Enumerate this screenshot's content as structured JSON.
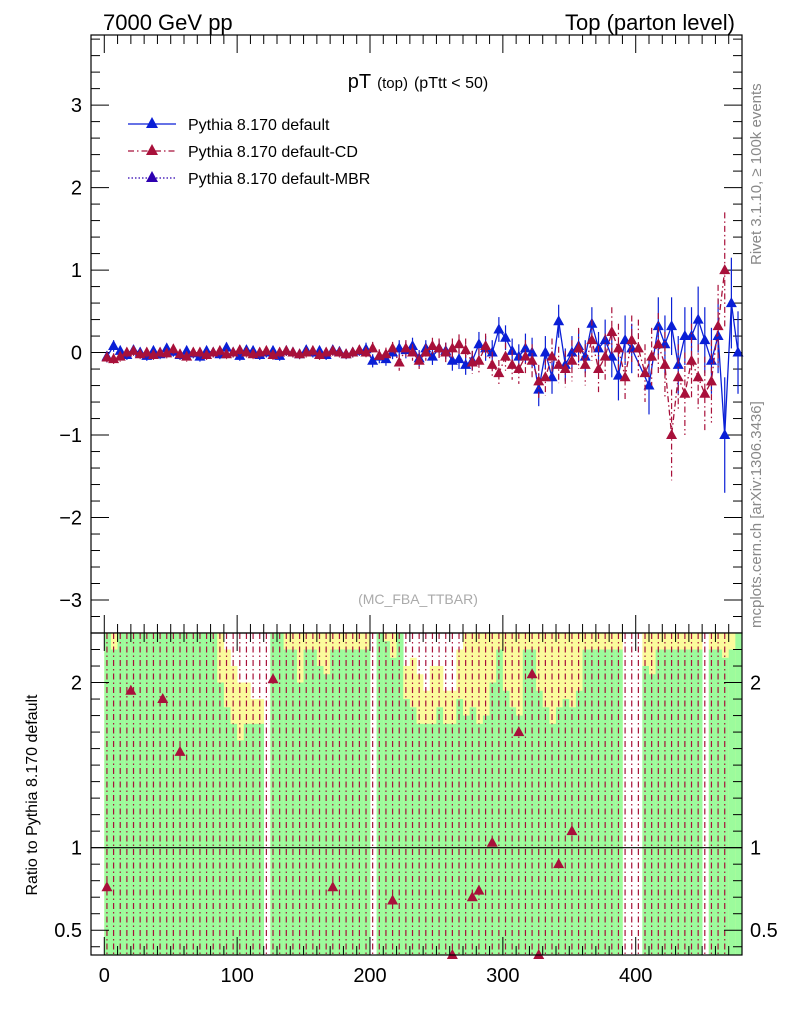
{
  "header": {
    "left": "7000 GeV pp",
    "right": "Top (parton level)"
  },
  "side_labels": {
    "rivet": "Rivet 3.1.10, ≥ 100k events",
    "mcplots": "mcplots.cern.ch [arXiv:1306.3436]"
  },
  "colors": {
    "default": "#0a1fd6",
    "cd": "#a8103a",
    "mbr": "#2d00b0",
    "band_green": "#9cfb9c",
    "band_yellow": "#fbfb9c"
  },
  "chart_data": [
    {
      "type": "line",
      "title_main": "pT",
      "title_sub": "(top)",
      "title_cut": "(pTtt < 50)",
      "watermark": "(MC_FBA_TTBAR)",
      "xlabel": "",
      "ylabel": "",
      "xlim": [
        -10,
        480
      ],
      "ylim": [
        -3.4,
        3.85
      ],
      "yticks": [
        -3,
        -2,
        -1,
        0,
        1,
        2,
        3
      ],
      "ytick_labels": [
        "−3",
        "−2",
        "−1",
        "0",
        "1",
        "2",
        "3"
      ],
      "legend": {
        "placement": "top-left",
        "entries": [
          "Pythia 8.170 default",
          "Pythia 8.170 default-CD",
          "Pythia 8.170 default-MBR"
        ]
      },
      "series": [
        {
          "name": "Pythia 8.170 default",
          "style": "solid",
          "x": [
            2,
            7,
            12,
            17,
            22,
            27,
            32,
            37,
            42,
            47,
            52,
            57,
            62,
            67,
            72,
            77,
            82,
            87,
            92,
            97,
            102,
            107,
            112,
            117,
            122,
            127,
            132,
            137,
            142,
            147,
            152,
            157,
            162,
            167,
            172,
            177,
            182,
            187,
            192,
            197,
            202,
            207,
            212,
            217,
            222,
            227,
            232,
            237,
            242,
            247,
            252,
            257,
            262,
            267,
            272,
            277,
            282,
            287,
            292,
            297,
            302,
            307,
            312,
            317,
            322,
            327,
            332,
            337,
            342,
            347,
            352,
            357,
            362,
            367,
            372,
            377,
            382,
            387,
            392,
            397,
            410,
            417,
            422,
            427,
            432,
            437,
            442,
            447,
            452,
            457,
            462,
            467,
            472,
            477
          ],
          "y": [
            -0.05,
            0.08,
            0.02,
            -0.03,
            0.03,
            0.0,
            -0.04,
            0.02,
            -0.02,
            0.05,
            0.01,
            -0.03,
            0.02,
            -0.01,
            -0.05,
            0.02,
            0.0,
            -0.02,
            0.06,
            0.0,
            -0.04,
            0.03,
            0.02,
            -0.03,
            0.0,
            0.02,
            -0.04,
            0.02,
            0.0,
            -0.02,
            0.03,
            0.0,
            0.02,
            -0.03,
            0.03,
            0.01,
            -0.02,
            0.0,
            0.02,
            0.04,
            -0.1,
            -0.05,
            -0.08,
            0.0,
            0.05,
            0.03,
            0.08,
            -0.07,
            0.05,
            -0.05,
            0.05,
            0.02,
            -0.1,
            -0.08,
            -0.15,
            -0.1,
            0.1,
            0.05,
            0.0,
            0.28,
            0.18,
            0.02,
            -0.05,
            0.05,
            0.0,
            -0.45,
            0.0,
            -0.3,
            0.38,
            -0.15,
            0.0,
            0.08,
            -0.05,
            0.35,
            0.05,
            0.15,
            -0.05,
            -0.28,
            0.15,
            0.05,
            -0.4,
            0.32,
            0.1,
            0.32,
            -0.15,
            0.2,
            0.2,
            0.4,
            0.15,
            -0.1,
            0.2,
            -1.0,
            0.6,
            0.0
          ],
          "yerr": [
            0.07,
            0.07,
            0.06,
            0.06,
            0.06,
            0.06,
            0.06,
            0.06,
            0.06,
            0.06,
            0.06,
            0.06,
            0.06,
            0.06,
            0.06,
            0.06,
            0.06,
            0.06,
            0.06,
            0.06,
            0.06,
            0.06,
            0.06,
            0.06,
            0.06,
            0.06,
            0.06,
            0.06,
            0.06,
            0.06,
            0.06,
            0.06,
            0.06,
            0.06,
            0.06,
            0.06,
            0.06,
            0.06,
            0.06,
            0.08,
            0.08,
            0.08,
            0.08,
            0.08,
            0.1,
            0.1,
            0.1,
            0.1,
            0.1,
            0.1,
            0.1,
            0.1,
            0.12,
            0.12,
            0.12,
            0.12,
            0.15,
            0.15,
            0.15,
            0.15,
            0.15,
            0.15,
            0.15,
            0.18,
            0.18,
            0.2,
            0.2,
            0.2,
            0.2,
            0.2,
            0.2,
            0.2,
            0.2,
            0.2,
            0.2,
            0.25,
            0.25,
            0.3,
            0.3,
            0.3,
            0.35,
            0.35,
            0.35,
            0.35,
            0.35,
            0.35,
            0.35,
            0.4,
            0.4,
            0.4,
            0.45,
            0.7,
            0.55,
            0.5
          ]
        },
        {
          "name": "Pythia 8.170 default-CD",
          "style": "dashdot",
          "x": [
            2,
            7,
            12,
            17,
            22,
            27,
            32,
            37,
            42,
            47,
            52,
            57,
            62,
            67,
            72,
            77,
            82,
            87,
            92,
            97,
            102,
            107,
            112,
            117,
            122,
            127,
            132,
            137,
            142,
            147,
            152,
            157,
            162,
            167,
            172,
            177,
            182,
            187,
            192,
            197,
            202,
            207,
            212,
            217,
            222,
            227,
            232,
            237,
            242,
            247,
            252,
            257,
            262,
            267,
            272,
            277,
            282,
            287,
            292,
            297,
            302,
            307,
            312,
            317,
            322,
            327,
            332,
            337,
            342,
            347,
            352,
            357,
            362,
            367,
            372,
            377,
            382,
            387,
            392,
            397,
            402,
            407,
            412,
            417,
            422,
            427,
            432,
            437,
            442,
            447,
            452,
            457,
            462,
            467
          ],
          "y": [
            -0.06,
            -0.08,
            -0.05,
            0.0,
            0.02,
            -0.02,
            0.0,
            -0.03,
            0.0,
            -0.01,
            0.04,
            -0.02,
            -0.05,
            0.0,
            0.0,
            -0.03,
            0.0,
            0.02,
            -0.02,
            0.0,
            0.03,
            0.0,
            -0.02,
            0.0,
            0.02,
            -0.03,
            0.0,
            0.02,
            0.0,
            -0.02,
            0.0,
            0.02,
            -0.03,
            0.0,
            0.02,
            0.0,
            -0.02,
            0.0,
            0.03,
            0.0,
            0.05,
            -0.04,
            -0.02,
            0.05,
            -0.12,
            0.05,
            0.0,
            -0.1,
            0.0,
            0.08,
            0.05,
            0.0,
            0.05,
            0.1,
            0.03,
            -0.12,
            -0.1,
            0.08,
            -0.15,
            -0.25,
            -0.05,
            -0.15,
            -0.2,
            -0.05,
            -0.1,
            -0.35,
            -0.3,
            -0.05,
            -0.15,
            -0.2,
            -0.1,
            0.05,
            -0.15,
            0.15,
            -0.2,
            -0.05,
            0.25,
            0.05,
            -0.3,
            0.15,
            0.05,
            -0.25,
            -0.05,
            0.1,
            -0.15,
            -1.0,
            -0.3,
            -0.5,
            -0.1,
            -0.3,
            -0.5,
            -0.35,
            0.32,
            1.0
          ],
          "yerr": [
            0.07,
            0.07,
            0.06,
            0.06,
            0.06,
            0.06,
            0.06,
            0.06,
            0.06,
            0.06,
            0.06,
            0.06,
            0.06,
            0.06,
            0.06,
            0.06,
            0.06,
            0.06,
            0.06,
            0.06,
            0.06,
            0.06,
            0.06,
            0.06,
            0.06,
            0.06,
            0.06,
            0.06,
            0.06,
            0.06,
            0.06,
            0.06,
            0.06,
            0.06,
            0.06,
            0.06,
            0.06,
            0.06,
            0.06,
            0.07,
            0.08,
            0.08,
            0.08,
            0.08,
            0.1,
            0.1,
            0.1,
            0.1,
            0.1,
            0.1,
            0.12,
            0.12,
            0.12,
            0.12,
            0.14,
            0.14,
            0.15,
            0.15,
            0.16,
            0.16,
            0.17,
            0.18,
            0.18,
            0.2,
            0.2,
            0.2,
            0.22,
            0.22,
            0.22,
            0.22,
            0.25,
            0.25,
            0.25,
            0.25,
            0.28,
            0.28,
            0.3,
            0.3,
            0.3,
            0.3,
            0.35,
            0.35,
            0.35,
            0.38,
            0.4,
            0.55,
            0.4,
            0.5,
            0.45,
            0.4,
            0.45,
            0.5,
            0.5,
            0.7
          ]
        },
        {
          "name": "Pythia 8.170 default-MBR",
          "style": "dotted",
          "x": [],
          "y": [],
          "yerr": []
        }
      ]
    },
    {
      "type": "line",
      "ylabel": "Ratio to Pythia 8.170 default",
      "xlim": [
        -10,
        480
      ],
      "ylim": [
        0.35,
        2.3
      ],
      "xticks": [
        0,
        100,
        200,
        300,
        400
      ],
      "xtick_labels": [
        "0",
        "100",
        "200",
        "300",
        "400"
      ],
      "yticks": [
        0.5,
        1,
        2
      ],
      "ytick_labels": [
        "0.5",
        "1",
        "2"
      ],
      "reference_line": 1,
      "band_edges": [
        0,
        5,
        10,
        15,
        20,
        25,
        30,
        35,
        40,
        45,
        50,
        55,
        60,
        65,
        70,
        75,
        80,
        85,
        90,
        95,
        100,
        105,
        110,
        115,
        120,
        125,
        130,
        135,
        140,
        145,
        150,
        155,
        160,
        165,
        170,
        175,
        180,
        185,
        190,
        195,
        200,
        205,
        210,
        215,
        220,
        225,
        230,
        235,
        240,
        245,
        250,
        255,
        260,
        265,
        270,
        275,
        280,
        285,
        290,
        295,
        300,
        305,
        310,
        315,
        320,
        325,
        330,
        335,
        340,
        345,
        350,
        355,
        360,
        365,
        370,
        375,
        380,
        385,
        390,
        395,
        400,
        405,
        410,
        415,
        420,
        425,
        430,
        435,
        440,
        445,
        450,
        455,
        460,
        465,
        470,
        475,
        480
      ],
      "band_green": [
        2.3,
        2.2,
        2.3,
        2.3,
        2.3,
        2.3,
        2.3,
        2.3,
        2.3,
        2.3,
        2.3,
        2.3,
        2.3,
        2.3,
        2.3,
        2.3,
        2.3,
        2.0,
        1.85,
        1.75,
        1.65,
        1.75,
        1.75,
        1.75,
        null,
        2.3,
        2.3,
        2.2,
        2.2,
        2.0,
        2.2,
        2.2,
        2.1,
        2.05,
        2.2,
        2.2,
        2.2,
        2.2,
        2.2,
        2.2,
        null,
        2.3,
        2.25,
        2.15,
        2.3,
        1.9,
        1.85,
        1.75,
        1.75,
        1.75,
        1.85,
        1.75,
        1.75,
        1.9,
        1.8,
        1.85,
        1.75,
        1.8,
        2.0,
        2.2,
        1.95,
        1.85,
        1.8,
        2.2,
        2.2,
        1.95,
        1.85,
        1.75,
        1.85,
        1.9,
        1.85,
        1.95,
        2.2,
        2.2,
        2.2,
        2.2,
        2.2,
        2.2,
        null,
        null,
        null,
        2.1,
        2.05,
        2.2,
        2.2,
        2.2,
        2.2,
        2.2,
        2.2,
        2.2,
        null,
        2.2,
        2.2,
        2.15,
        2.2,
        2.3
      ],
      "band_yellow": [
        2.3,
        2.3,
        2.3,
        2.3,
        2.3,
        2.3,
        2.3,
        2.3,
        2.3,
        2.3,
        2.3,
        2.3,
        2.3,
        2.3,
        2.3,
        2.3,
        2.3,
        2.3,
        2.2,
        2.1,
        2.0,
        2.0,
        1.9,
        1.9,
        null,
        2.3,
        2.3,
        2.3,
        2.3,
        2.3,
        2.3,
        2.3,
        2.3,
        2.3,
        2.3,
        2.3,
        2.3,
        2.3,
        2.3,
        2.3,
        null,
        2.3,
        2.3,
        2.3,
        2.3,
        2.1,
        2.15,
        2.05,
        1.95,
        2.1,
        2.1,
        1.95,
        1.95,
        2.2,
        2.3,
        2.3,
        2.3,
        2.3,
        2.3,
        2.3,
        2.3,
        2.3,
        2.3,
        2.3,
        2.3,
        2.3,
        2.3,
        2.3,
        2.3,
        2.3,
        2.3,
        2.3,
        2.3,
        2.3,
        2.3,
        2.3,
        2.3,
        2.3,
        null,
        null,
        null,
        2.3,
        2.3,
        2.3,
        2.3,
        2.3,
        2.3,
        2.3,
        2.3,
        2.3,
        null,
        2.3,
        2.3,
        2.3,
        2.3,
        2.3
      ],
      "band_low_green": [
        0.35,
        0.35,
        0.35,
        0.35,
        0.35,
        0.35,
        0.35,
        0.35,
        0.35,
        0.35,
        0.35,
        0.35,
        0.35,
        0.35,
        0.35,
        0.35,
        0.35,
        0.35,
        0.35,
        0.35,
        0.35,
        0.35,
        0.35,
        0.35,
        null,
        0.35,
        0.35,
        0.35,
        0.35,
        0.35,
        0.35,
        0.35,
        0.35,
        0.35,
        0.35,
        0.35,
        0.35,
        0.35,
        0.35,
        0.35,
        null,
        0.35,
        0.35,
        0.35,
        0.35,
        0.35,
        0.35,
        0.35,
        0.35,
        0.35,
        0.35,
        0.35,
        0.35,
        0.35,
        0.35,
        0.35,
        0.35,
        0.35,
        0.35,
        0.35,
        0.35,
        0.35,
        0.35,
        0.35,
        0.35,
        0.35,
        0.35,
        0.35,
        0.35,
        0.35,
        0.35,
        0.35,
        0.35,
        0.35,
        0.35,
        0.35,
        0.35,
        0.35,
        null,
        null,
        null,
        0.35,
        0.35,
        0.35,
        0.35,
        0.35,
        0.35,
        0.35,
        0.35,
        0.35,
        null,
        0.35,
        0.35,
        0.35,
        0.35,
        0.35
      ],
      "ratio_markers": {
        "x": [
          2,
          20,
          44,
          57,
          127,
          172,
          217,
          262,
          277,
          282,
          292,
          312,
          322,
          327,
          342,
          352
        ],
        "y": [
          0.76,
          1.95,
          1.9,
          1.58,
          2.02,
          0.76,
          0.68,
          0.35,
          0.7,
          0.74,
          1.03,
          1.7,
          2.05,
          0.35,
          0.9,
          1.1
        ]
      }
    }
  ]
}
